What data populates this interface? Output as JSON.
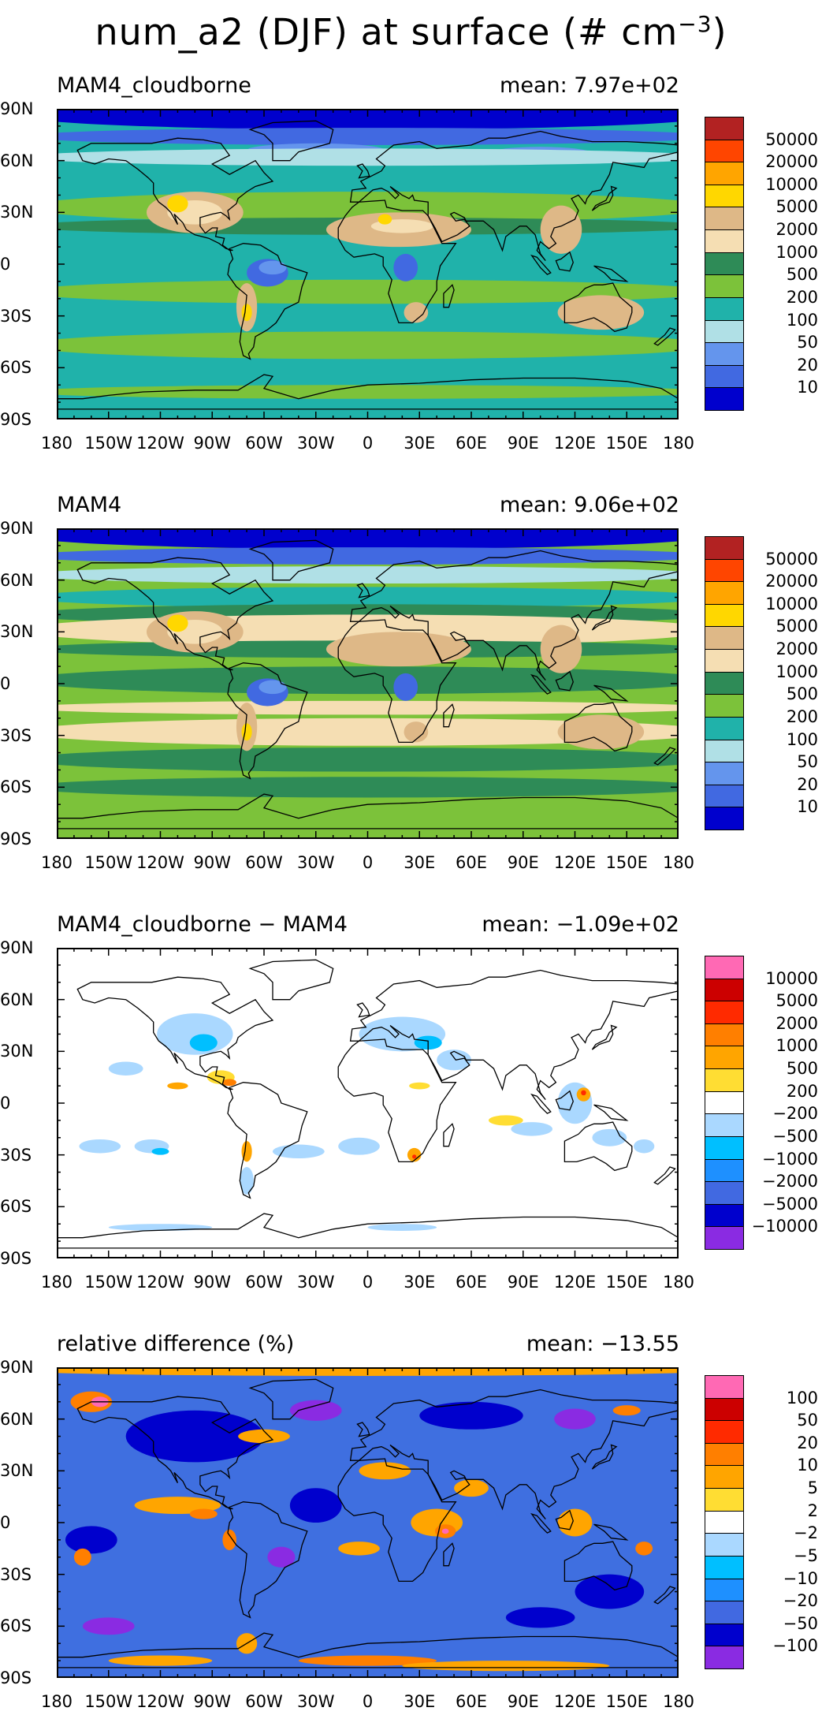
{
  "title": {
    "text": "num_a2 (DJF) at surface (# cm",
    "exponent": "−3",
    "close": ")"
  },
  "axes": {
    "lat_ticks": [
      "90N",
      "60N",
      "30N",
      "0",
      "30S",
      "60S",
      "90S"
    ],
    "lon_ticks": [
      "180",
      "150W",
      "120W",
      "90W",
      "60W",
      "30W",
      "0",
      "30E",
      "60E",
      "90E",
      "120E",
      "150E",
      "180"
    ]
  },
  "panels": [
    {
      "label": "MAM4_cloudborne",
      "mean": "mean: 7.97e+02",
      "colorbar_labels": [
        "50000",
        "20000",
        "10000",
        "5000",
        "2000",
        "1000",
        "500",
        "200",
        "100",
        "50",
        "20",
        "10"
      ],
      "colors": [
        "#b22222",
        "#ff4500",
        "#ffa500",
        "#ffd700",
        "#deb887",
        "#f5deb3",
        "#2e8b57",
        "#7cc23a",
        "#20b2aa",
        "#b0e0e6",
        "#6495ed",
        "#4169e1",
        "#0000cd"
      ],
      "base": "#20b2aa"
    },
    {
      "label": "MAM4",
      "mean": "mean: 9.06e+02",
      "colorbar_labels": [
        "50000",
        "20000",
        "10000",
        "5000",
        "2000",
        "1000",
        "500",
        "200",
        "100",
        "50",
        "20",
        "10"
      ],
      "colors": [
        "#b22222",
        "#ff4500",
        "#ffa500",
        "#ffd700",
        "#deb887",
        "#f5deb3",
        "#2e8b57",
        "#7cc23a",
        "#20b2aa",
        "#b0e0e6",
        "#6495ed",
        "#4169e1",
        "#0000cd"
      ],
      "base": "#7cc23a"
    },
    {
      "label": "MAM4_cloudborne − MAM4",
      "mean": "mean: −1.09e+02",
      "colorbar_labels": [
        "10000",
        "5000",
        "2000",
        "1000",
        "500",
        "200",
        "−200",
        "−500",
        "−1000",
        "−2000",
        "−5000",
        "−10000"
      ],
      "colors": [
        "#ff69b4",
        "#cc0000",
        "#ff2a00",
        "#ff7f00",
        "#ffa500",
        "#ffdd33",
        "#ffffff",
        "#aad8ff",
        "#00bfff",
        "#1e90ff",
        "#4169e1",
        "#0000cd",
        "#8a2be2"
      ],
      "base": "#ffffff"
    },
    {
      "label": "relative difference (%)",
      "mean": "mean: −13.55",
      "colorbar_labels": [
        "100",
        "50",
        "20",
        "10",
        "5",
        "2",
        "−2",
        "−5",
        "−10",
        "−20",
        "−50",
        "−100"
      ],
      "colors": [
        "#ff69b4",
        "#cc0000",
        "#ff2a00",
        "#ff7f00",
        "#ffa500",
        "#ffdd33",
        "#ffffff",
        "#aad8ff",
        "#00bfff",
        "#1e90ff",
        "#4169e1",
        "#0000cd",
        "#8a2be2"
      ],
      "base": "#3f6fe0"
    }
  ]
}
